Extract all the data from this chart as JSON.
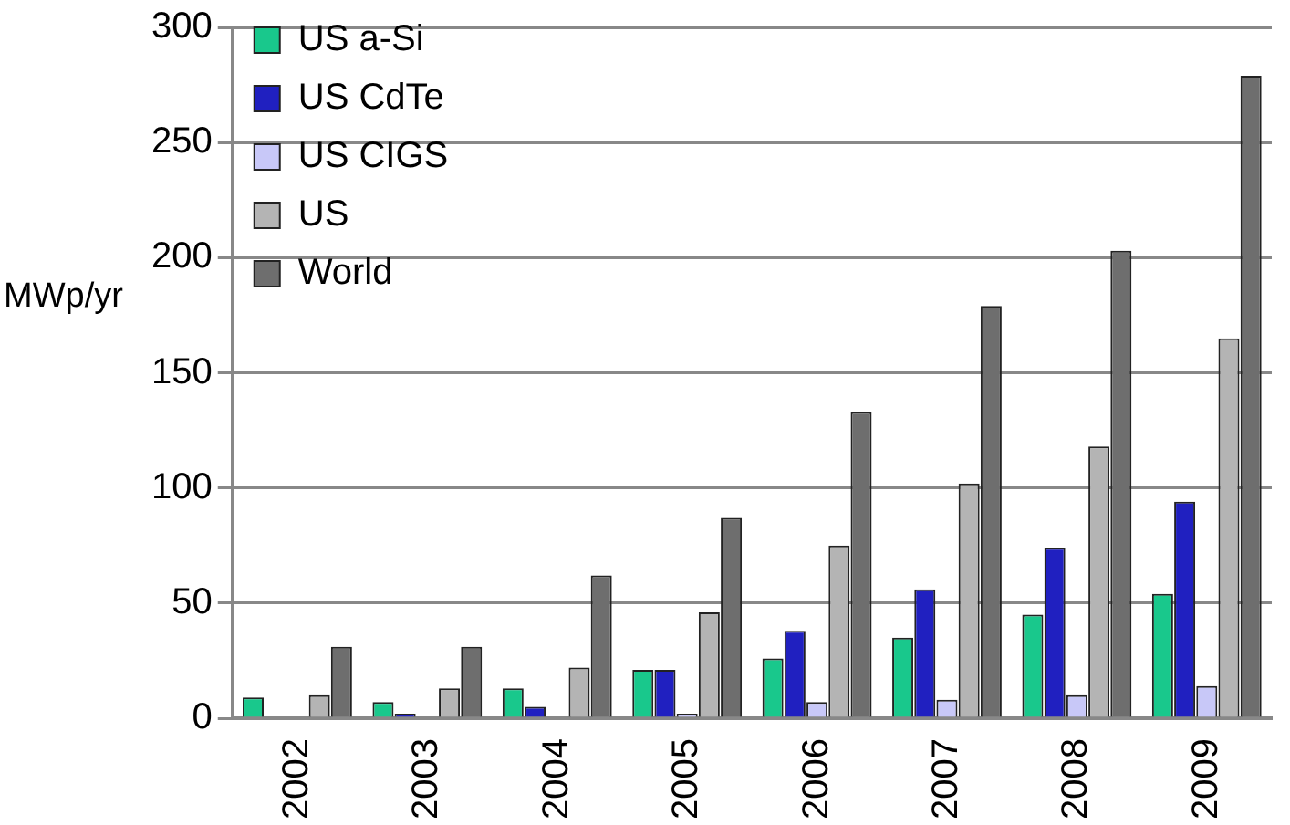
{
  "chart_data": {
    "type": "bar",
    "ylabel": "MWp/yr",
    "categories": [
      "2002",
      "2003",
      "2004",
      "2005",
      "2006",
      "2007",
      "2008",
      "2009"
    ],
    "series": [
      {
        "name": "US a-Si",
        "color": "#19c88c",
        "values": [
          9,
          7,
          13,
          21,
          26,
          35,
          45,
          54
        ]
      },
      {
        "name": "US CdTe",
        "color": "#2020c0",
        "values": [
          0,
          2,
          5,
          21,
          38,
          56,
          74,
          94
        ]
      },
      {
        "name": "US CIGS",
        "color": "#c8c8f8",
        "values": [
          0,
          null,
          null,
          2,
          7,
          8,
          10,
          14
        ]
      },
      {
        "name": "US",
        "color": "#b4b4b4",
        "values": [
          10,
          13,
          22,
          46,
          75,
          102,
          118,
          165
        ]
      },
      {
        "name": "World",
        "color": "#6e6e6e",
        "values": [
          31,
          31,
          62,
          87,
          133,
          179,
          203,
          279
        ]
      }
    ],
    "ylim": [
      0,
      300
    ],
    "yticks": [
      0,
      50,
      100,
      150,
      200,
      250,
      300
    ],
    "grid": "y",
    "legend": "top left"
  }
}
